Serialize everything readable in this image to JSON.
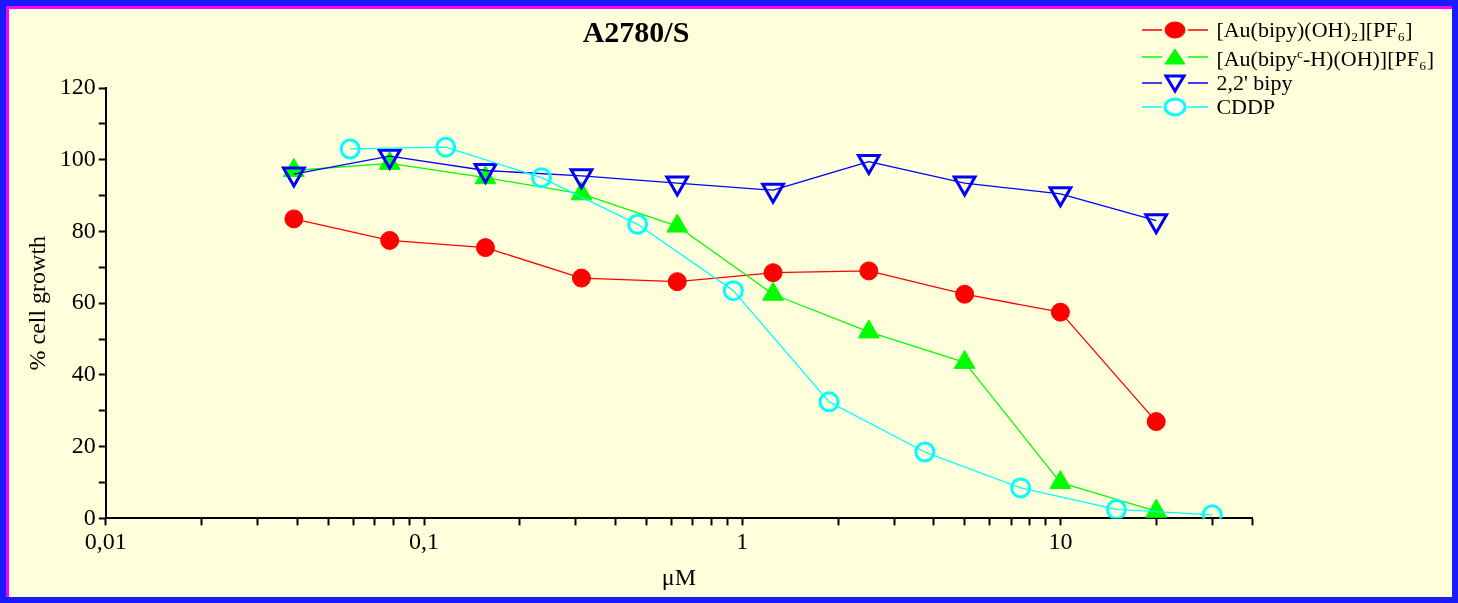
{
  "chart_data": {
    "type": "line",
    "title": "A2780/S",
    "xlabel": "μM",
    "ylabel": "% cell growth",
    "log": "x",
    "line_style": "solid",
    "legend": "top right",
    "grid": false,
    "xlim": [
      0.01,
      40
    ],
    "xticks": [
      {
        "value": 0.01,
        "label": "0,01"
      },
      {
        "value": 0.02,
        "label": null
      },
      {
        "value": 0.03,
        "label": null
      },
      {
        "value": 0.04,
        "label": null
      },
      {
        "value": 0.05,
        "label": null
      },
      {
        "value": 0.06,
        "label": null
      },
      {
        "value": 0.07,
        "label": null
      },
      {
        "value": 0.08,
        "label": null
      },
      {
        "value": 0.09,
        "label": null
      },
      {
        "value": 0.1,
        "label": "0,1"
      },
      {
        "value": 0.2,
        "label": null
      },
      {
        "value": 0.3,
        "label": null
      },
      {
        "value": 0.4,
        "label": null
      },
      {
        "value": 0.5,
        "label": null
      },
      {
        "value": 0.6,
        "label": null
      },
      {
        "value": 0.7,
        "label": null
      },
      {
        "value": 0.8,
        "label": null
      },
      {
        "value": 0.9,
        "label": null
      },
      1,
      {
        "value": 2,
        "label": null
      },
      {
        "value": 3,
        "label": null
      },
      {
        "value": 4,
        "label": null
      },
      {
        "value": 5,
        "label": null
      },
      {
        "value": 6,
        "label": null
      },
      {
        "value": 7,
        "label": null
      },
      {
        "value": 8,
        "label": null
      },
      {
        "value": 9,
        "label": null
      },
      10,
      {
        "value": 20,
        "label": null
      },
      {
        "value": 30,
        "label": null
      },
      {
        "value": 40,
        "label": null
      }
    ],
    "ylim": [
      0,
      120
    ],
    "yticks": [
      0,
      {
        "value": 10,
        "label": null
      },
      20,
      {
        "value": 30,
        "label": null
      },
      40,
      {
        "value": 50,
        "label": null
      },
      60,
      {
        "value": 70,
        "label": null
      },
      80,
      {
        "value": 90,
        "label": null
      },
      100,
      {
        "value": 110,
        "label": null
      },
      120
    ],
    "series": [
      {
        "name": "[Au(bipy)(OH)₂][PF₆]",
        "color": "#ff0000",
        "marker": "circle",
        "x": [
          0.039,
          0.078,
          0.156,
          0.3125,
          0.625,
          1.25,
          2.5,
          5,
          10,
          20
        ],
        "values": [
          83.5,
          77.5,
          75.5,
          67,
          66,
          68.5,
          69,
          62.5,
          57.5,
          27
        ]
      },
      {
        "name": "[Au(bipy$^{c}$-H)(OH)][PF₆]",
        "color": "#00ff00",
        "marker": "triangle",
        "x": [
          0.039,
          0.078,
          0.156,
          0.3125,
          0.625,
          1.25,
          2.5,
          5,
          10,
          20
        ],
        "values": [
          97,
          99,
          95,
          90.5,
          81.5,
          62.5,
          52,
          43.5,
          10,
          2
        ]
      },
      {
        "name": "2,2' bipy",
        "color": "#0000ff",
        "marker": "triangle",
        "x": [
          0.039,
          0.078,
          0.156,
          0.3125,
          0.625,
          1.25,
          2.5,
          5,
          10,
          20
        ],
        "values": [
          96,
          101,
          97,
          95.5,
          93.5,
          91.5,
          99.5,
          93.5,
          90.5,
          83
        ]
      },
      {
        "name": "CDDP",
        "color": "#00ffff",
        "marker": "circle",
        "x": [
          0.0586,
          0.117,
          0.234,
          0.469,
          0.9375,
          1.875,
          3.75,
          7.5,
          15,
          30
        ],
        "values": [
          103,
          103.5,
          95,
          82,
          63.5,
          32.5,
          18.5,
          8.5,
          2.5,
          1
        ]
      }
    ]
  }
}
